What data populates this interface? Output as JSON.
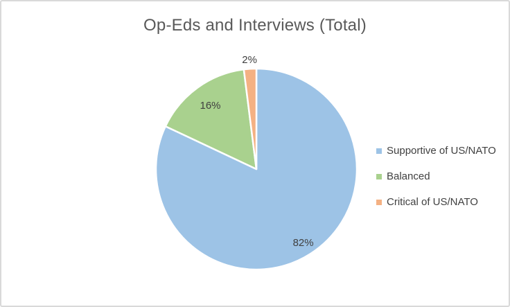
{
  "chart_data": {
    "type": "pie",
    "title": "Op-Eds and Interviews (Total)",
    "categories": [
      "Supportive of US/NATO",
      "Balanced",
      "Critical of US/NATO"
    ],
    "values": [
      82,
      16,
      2
    ],
    "data_labels": [
      "82%",
      "16%",
      "2%"
    ],
    "colors": [
      "#9DC3E6",
      "#A9D18E",
      "#F4B183"
    ],
    "slice_border_color": "#FFFFFF",
    "label_color": "#404040",
    "title_color": "#595959",
    "legend_position": "right",
    "start_angle_deg": 0,
    "direction": "clockwise",
    "label_placement": [
      {
        "category": "Supportive of US/NATO",
        "inside": true,
        "radial_factor": 0.87
      },
      {
        "category": "Balanced",
        "inside": true,
        "radial_factor": 0.78
      },
      {
        "category": "Critical of US/NATO",
        "inside": false,
        "radial_factor": 1.09
      }
    ]
  }
}
